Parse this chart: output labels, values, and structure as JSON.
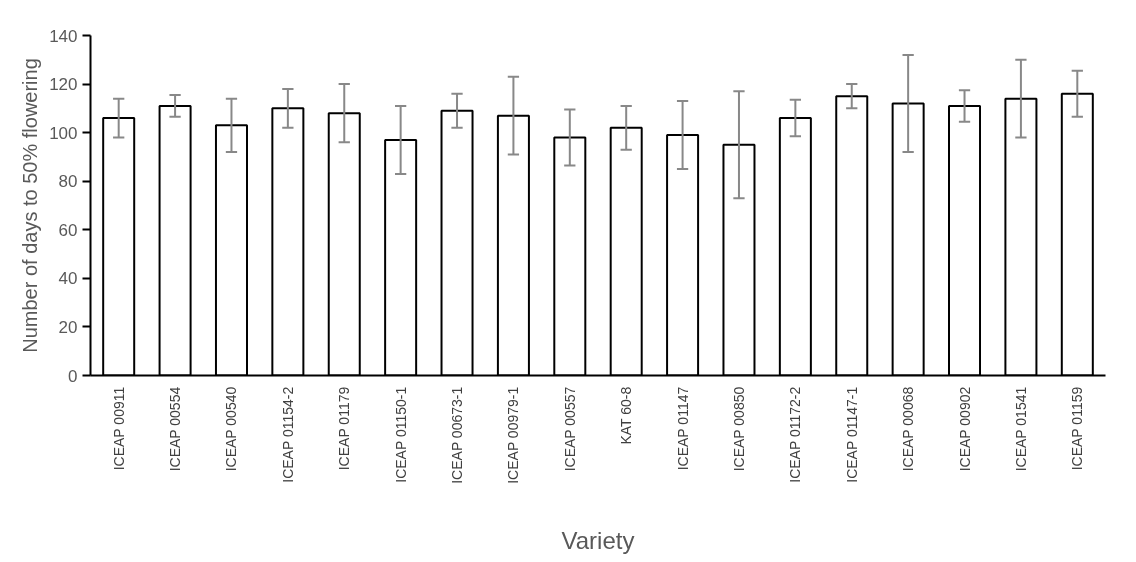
{
  "chart_data": {
    "type": "bar",
    "xlabel": "Variety",
    "ylabel": "Number of days to 50% flowering",
    "categories": [
      "ICEAP 00911",
      "ICEAP 00554",
      "ICEAP 00540",
      "ICEAP 01154-2",
      "ICEAP 01179",
      "ICEAP 01150-1",
      "ICEAP 00673-1",
      "ICEAP 00979-1",
      "ICEAP 00557",
      "KAT 60-8",
      "ICEAP 01147",
      "ICEAP 00850",
      "ICEAP 01172-2",
      "ICEAP 01147-1",
      "ICEAP 00068",
      "ICEAP 00902",
      "ICEAP 01541",
      "ICEAP 01159"
    ],
    "values": [
      106,
      111,
      103,
      110,
      108,
      97,
      109,
      107,
      98,
      102,
      99,
      95,
      106,
      115,
      112,
      111,
      114,
      116
    ],
    "errors": [
      8,
      4.5,
      11,
      8,
      12,
      14,
      7,
      16,
      11.5,
      9,
      14,
      22,
      7.5,
      5,
      20,
      6.5,
      16,
      9.5
    ],
    "color": "#ffffff",
    "ylim": [
      0,
      140
    ],
    "yticks": [
      0,
      20,
      40,
      60,
      80,
      100,
      120,
      140
    ],
    "grid": false
  }
}
